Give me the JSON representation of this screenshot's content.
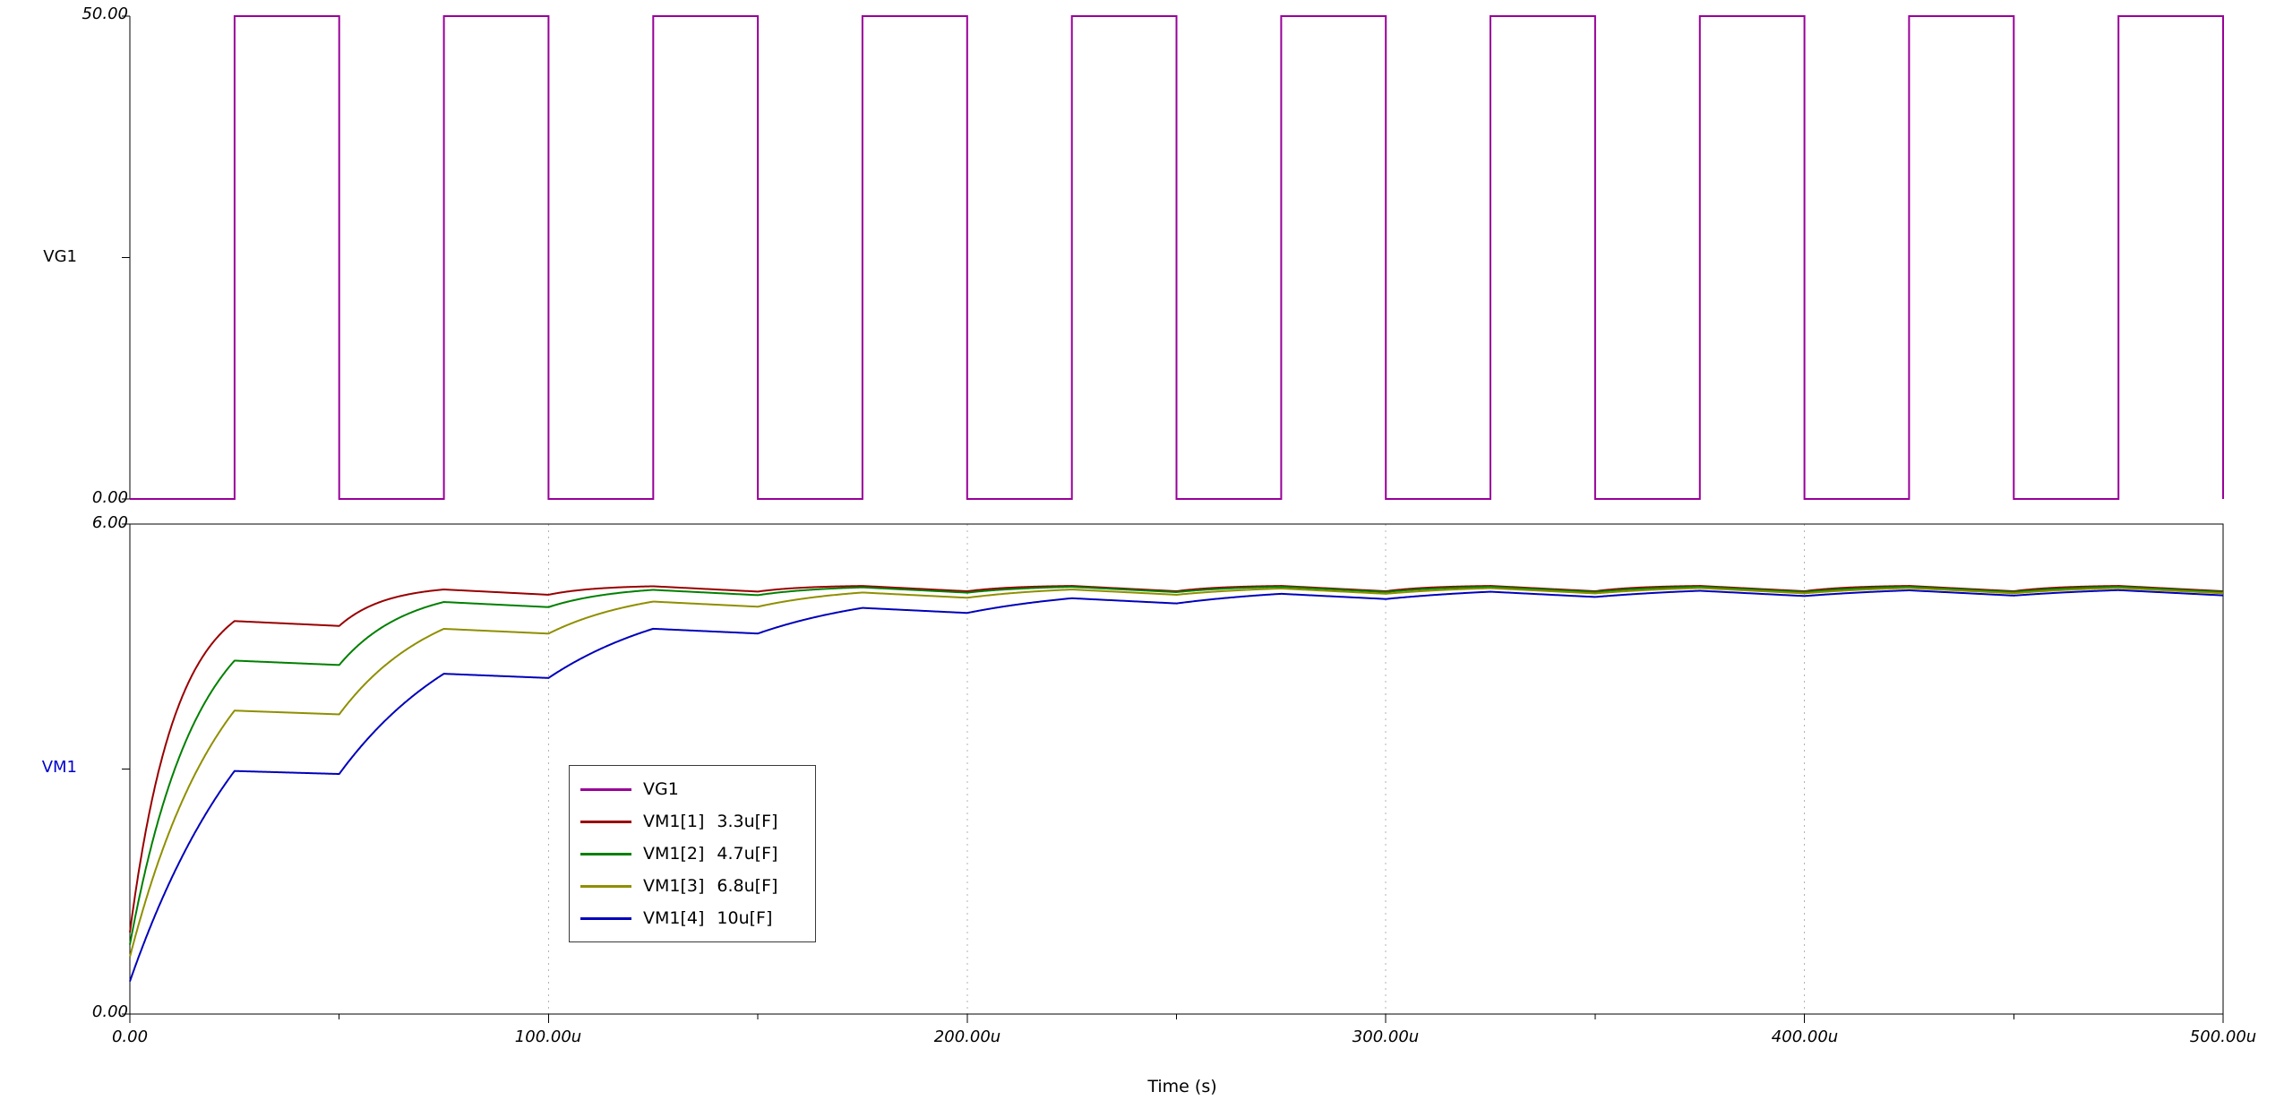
{
  "figure": {
    "background": "#ffffff",
    "frame_color": "#000000",
    "gridline_color": "#b3b3b3"
  },
  "chart_data": [
    {
      "type": "line",
      "panel": "top",
      "ylabel": "VG1",
      "ylabel_color": "#000000",
      "ylim": [
        0,
        50
      ],
      "ytick_labels": [
        "0.00",
        "50.00"
      ],
      "x_range_us": [
        0,
        500
      ],
      "series": [
        {
          "name": "VG1",
          "color": "#990099",
          "waveform": "square",
          "low": 0,
          "high": 50,
          "period_us": 50,
          "duty": 0.5,
          "rise_times_us": [
            25,
            75,
            125,
            175,
            225,
            275,
            325,
            375,
            425,
            475
          ],
          "fall_times_us": [
            50,
            100,
            150,
            200,
            250,
            300,
            350,
            400,
            450,
            500
          ]
        }
      ]
    },
    {
      "type": "line",
      "panel": "bottom",
      "ylabel": "VM1",
      "ylabel_color": "#0000cc",
      "ylim": [
        0,
        6
      ],
      "ytick_labels": [
        "0.00",
        "6.00"
      ],
      "xlabel": "Time (s)",
      "x_ticks_us": [
        0,
        100,
        200,
        300,
        400,
        500
      ],
      "x_tick_labels": [
        "0.00",
        "100.00u",
        "200.00u",
        "300.00u",
        "400.00u",
        "500.00u"
      ],
      "grid_us": [
        100,
        200,
        300,
        400
      ],
      "minor_tick_step_us": 50,
      "series": [
        {
          "name": "VM1[1]",
          "capacitance": "3.3u[F]",
          "color": "#990000",
          "model": {
            "v0": 1.0,
            "v_target": 5.25,
            "tau_charge_us": 11,
            "tau_hold_us": 2000,
            "period_us": 50,
            "charge_window_us": [
              0,
              25
            ]
          },
          "plateau_times_us": [
            25,
            75,
            125,
            175,
            225,
            275,
            325,
            375,
            425,
            475
          ],
          "plateau_values": [
            4.81,
            5.2,
            5.24,
            5.24,
            5.24,
            5.24,
            5.24,
            5.24,
            5.24,
            5.24
          ]
        },
        {
          "name": "VM1[2]",
          "capacitance": "4.7u[F]",
          "color": "#008000",
          "model": {
            "v0": 0.85,
            "v_target": 5.25,
            "tau_charge_us": 16,
            "tau_hold_us": 2000,
            "period_us": 50,
            "charge_window_us": [
              0,
              25
            ]
          },
          "plateau_times_us": [
            25,
            75,
            125,
            175,
            225,
            275,
            325,
            375,
            425,
            475
          ],
          "plateau_values": [
            4.33,
            5.05,
            5.19,
            5.23,
            5.23,
            5.23,
            5.23,
            5.23,
            5.23,
            5.23
          ]
        },
        {
          "name": "VM1[3]",
          "capacitance": "6.8u[F]",
          "color": "#8f8f00",
          "model": {
            "v0": 0.7,
            "v_target": 5.25,
            "tau_charge_us": 23,
            "tau_hold_us": 2000,
            "period_us": 50,
            "charge_window_us": [
              0,
              25
            ]
          },
          "plateau_times_us": [
            25,
            75,
            125,
            175,
            225,
            275,
            325,
            375,
            425,
            475
          ],
          "plateau_values": [
            3.72,
            4.72,
            5.05,
            5.16,
            5.2,
            5.21,
            5.21,
            5.22,
            5.22,
            5.22
          ]
        },
        {
          "name": "VM1[4]",
          "capacitance": "10u[F]",
          "color": "#0000bb",
          "model": {
            "v0": 0.4,
            "v_target": 5.25,
            "tau_charge_us": 33,
            "tau_hold_us": 2000,
            "period_us": 50,
            "charge_window_us": [
              0,
              25
            ]
          },
          "plateau_times_us": [
            25,
            75,
            125,
            175,
            225,
            275,
            325,
            375,
            425,
            475
          ],
          "plateau_values": [
            2.98,
            4.17,
            4.72,
            4.97,
            5.09,
            5.15,
            5.17,
            5.18,
            5.19,
            5.19
          ]
        }
      ],
      "legend": {
        "entries": [
          {
            "label": "VG1",
            "value": "",
            "color": "#990099"
          },
          {
            "label": "VM1[1]",
            "value": "3.3u[F]",
            "color": "#990000"
          },
          {
            "label": "VM1[2]",
            "value": "4.7u[F]",
            "color": "#008000"
          },
          {
            "label": "VM1[3]",
            "value": "6.8u[F]",
            "color": "#8f8f00"
          },
          {
            "label": "VM1[4]",
            "value": "10u[F]",
            "color": "#0000bb"
          }
        ]
      }
    }
  ]
}
